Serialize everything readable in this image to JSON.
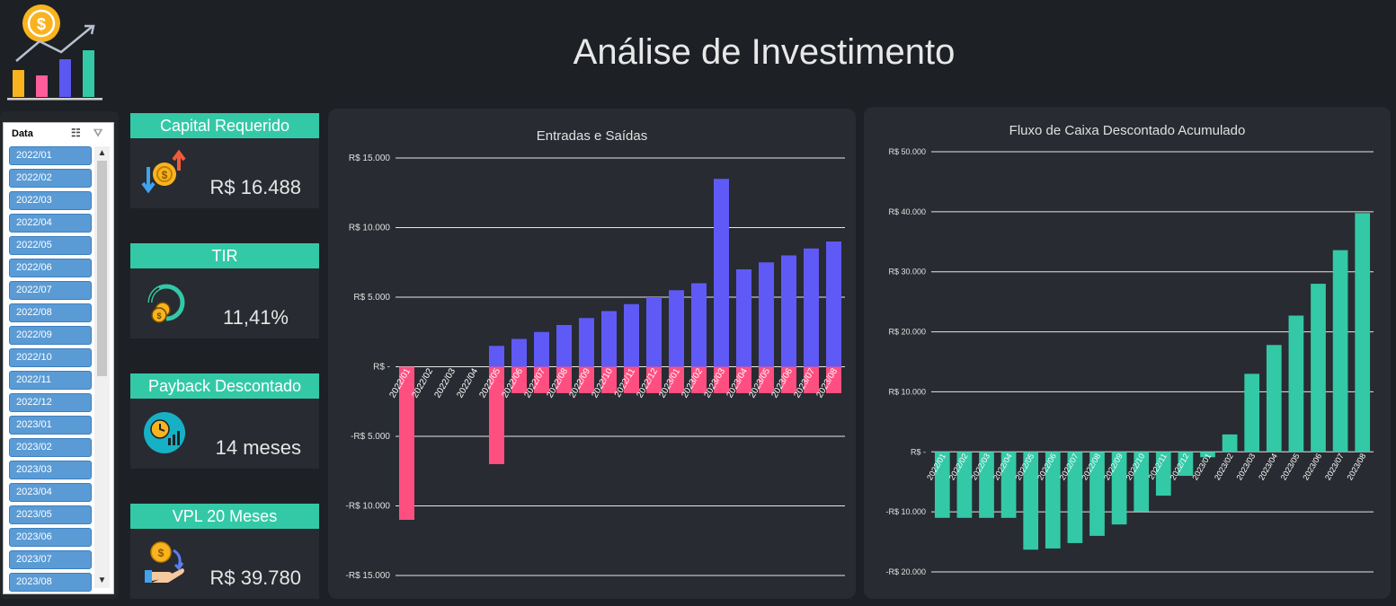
{
  "title": "Análise de Investimento",
  "slicer": {
    "header": "Data",
    "items": [
      "2022/01",
      "2022/02",
      "2022/03",
      "2022/04",
      "2022/05",
      "2022/06",
      "2022/07",
      "2022/08",
      "2022/09",
      "2022/10",
      "2022/11",
      "2022/12",
      "2023/01",
      "2023/02",
      "2023/03",
      "2023/04",
      "2023/05",
      "2023/06",
      "2023/07",
      "2023/08"
    ]
  },
  "kpis": [
    {
      "label": "Capital Requerido",
      "value": "R$ 16.488",
      "icon": "coins-arrows-icon"
    },
    {
      "label": "TIR",
      "value": "11,41%",
      "icon": "coin-cycle-icon"
    },
    {
      "label": "Payback Descontado",
      "value": "14 meses",
      "icon": "clock-chart-icon"
    },
    {
      "label": "VPL 20 Meses",
      "value": "R$ 39.780",
      "icon": "hand-coin-icon"
    }
  ],
  "colors": {
    "background": "#1d2025",
    "panel": "#282b31",
    "accent": "#33c9a7",
    "inflow": "#5f5af5",
    "outflow": "#ff4f81"
  },
  "chart_data": [
    {
      "type": "bar",
      "title": "Entradas e Saídas",
      "categories": [
        "2022/01",
        "2022/02",
        "2022/03",
        "2022/04",
        "2022/05",
        "2022/06",
        "2022/07",
        "2022/08",
        "2022/09",
        "2022/10",
        "2022/11",
        "2022/12",
        "2023/01",
        "2023/02",
        "2023/03",
        "2023/04",
        "2023/05",
        "2023/06",
        "2023/07",
        "2023/08"
      ],
      "series": [
        {
          "values": [
            0,
            0,
            0,
            0,
            1500,
            2000,
            2500,
            3000,
            3500,
            4000,
            4500,
            5000,
            5500,
            6000,
            13500,
            7000,
            7500,
            8000,
            8500,
            9000
          ]
        },
        {
          "values": [
            -11000,
            0,
            0,
            0,
            -7000,
            -1900,
            -1900,
            -1900,
            -1900,
            -1900,
            -1900,
            -1900,
            -1900,
            -1900,
            -1900,
            -1900,
            -1900,
            -1900,
            -1900,
            -1900
          ]
        }
      ],
      "ylim": [
        -15000,
        15000
      ],
      "yticks": [
        15000,
        10000,
        5000,
        0,
        -5000,
        -10000,
        -15000
      ],
      "ytick_labels": [
        "R$ 15.000",
        "R$ 10.000",
        "R$ 5.000",
        "R$ -",
        "-R$ 5.000",
        "-R$ 10.000",
        "-R$ 15.000"
      ],
      "grid": true
    },
    {
      "type": "bar",
      "title": "Fluxo de Caixa Descontado Acumulado",
      "categories": [
        "2022/01",
        "2022/02",
        "2022/03",
        "2022/04",
        "2022/05",
        "2022/06",
        "2022/07",
        "2022/08",
        "2022/09",
        "2022/10",
        "2022/11",
        "2022/12",
        "2023/01",
        "2023/02",
        "2023/03",
        "2023/04",
        "2023/05",
        "2023/06",
        "2023/07",
        "2023/08"
      ],
      "values": [
        -11000,
        -11000,
        -11000,
        -11000,
        -16300,
        -16100,
        -15200,
        -14000,
        -12100,
        -9900,
        -7300,
        -4000,
        -900,
        2900,
        13000,
        17800,
        22700,
        28000,
        33600,
        39780
      ],
      "ylim": [
        -20000,
        50000
      ],
      "yticks": [
        50000,
        40000,
        30000,
        20000,
        10000,
        0,
        -10000,
        -20000
      ],
      "ytick_labels": [
        "R$ 50.000",
        "R$ 40.000",
        "R$ 30.000",
        "R$ 20.000",
        "R$ 10.000",
        "R$ -",
        "-R$ 10.000",
        "-R$ 20.000"
      ],
      "grid": true
    }
  ]
}
